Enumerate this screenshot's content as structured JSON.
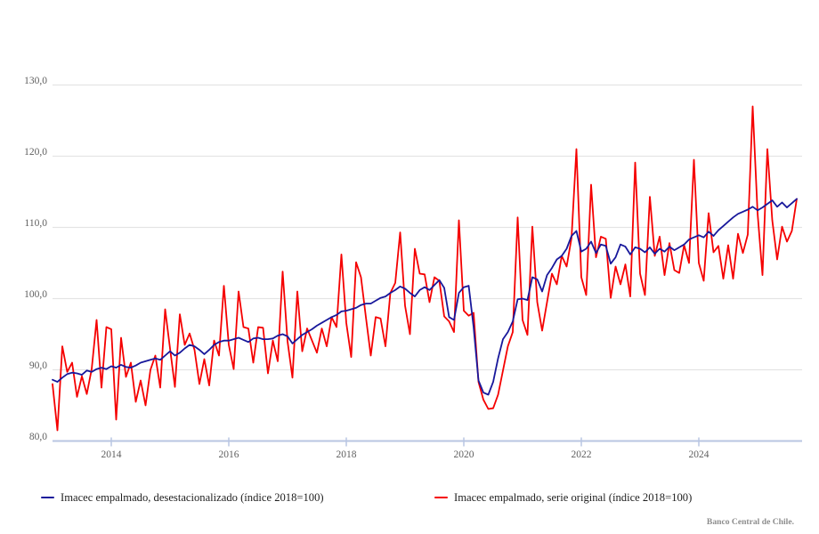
{
  "chart_data": {
    "type": "line",
    "title": "",
    "x_start": {
      "year": 2013,
      "month": 1
    },
    "x_end": {
      "year": 2025,
      "month": 9
    },
    "x_tick_years": [
      "2014",
      "2016",
      "2018",
      "2020",
      "2022",
      "2024"
    ],
    "y_ticks": [
      {
        "label": "130,0",
        "value": 130
      },
      {
        "label": "120,0",
        "value": 120
      },
      {
        "label": "110,0",
        "value": 110
      },
      {
        "label": "100,0",
        "value": 100
      },
      {
        "label": "90,0",
        "value": 90
      },
      {
        "label": "80,0",
        "value": 80
      }
    ],
    "ylim": [
      80,
      130
    ],
    "grid": "horizontal",
    "legend_position": "bottom",
    "colors": {
      "gridline": "#e4e4e4",
      "axis": "#b8c6e2",
      "tick_label": "#5f5f5f",
      "series_sa": "#18189b",
      "series_original": "#f50000"
    },
    "series": [
      {
        "name": "Imacec empalmado, desestacionalizado (índice 2018=100)",
        "color": "#18189b",
        "values": [
          88.6,
          88.3,
          88.9,
          89.4,
          89.6,
          89.5,
          89.3,
          89.9,
          89.7,
          90.1,
          90.3,
          90.1,
          90.5,
          90.3,
          90.7,
          90.4,
          90.3,
          90.6,
          91.0,
          91.2,
          91.4,
          91.6,
          91.4,
          92.0,
          92.6,
          92.0,
          92.4,
          93.0,
          93.5,
          93.3,
          92.8,
          92.2,
          92.8,
          93.5,
          93.9,
          94.1,
          94.1,
          94.3,
          94.5,
          94.2,
          93.9,
          94.4,
          94.5,
          94.3,
          94.3,
          94.4,
          94.8,
          95.0,
          94.7,
          93.7,
          94.3,
          94.9,
          95.3,
          95.7,
          96.2,
          96.6,
          97.0,
          97.4,
          97.7,
          98.2,
          98.3,
          98.5,
          98.7,
          99.1,
          99.3,
          99.3,
          99.7,
          100.1,
          100.3,
          100.8,
          101.2,
          101.7,
          101.4,
          100.8,
          100.3,
          101.2,
          101.6,
          101.2,
          101.9,
          102.6,
          101.5,
          97.4,
          97.0,
          100.8,
          101.6,
          101.8,
          96.0,
          88.5,
          86.8,
          86.5,
          88.3,
          91.6,
          94.3,
          95.3,
          96.8,
          99.9,
          100.0,
          99.8,
          103.0,
          102.7,
          101.0,
          103.3,
          104.3,
          105.5,
          106.0,
          107.0,
          108.8,
          109.5,
          106.6,
          107.0,
          108.0,
          106.4,
          107.6,
          107.4,
          104.9,
          105.8,
          107.6,
          107.3,
          106.2,
          107.2,
          107.0,
          106.5,
          107.2,
          106.3,
          107.0,
          106.6,
          107.3,
          106.8,
          107.2,
          107.6,
          108.3,
          108.6,
          108.9,
          108.6,
          109.4,
          108.8,
          109.6,
          110.2,
          110.8,
          111.4,
          111.9,
          112.2,
          112.5,
          112.9,
          112.4,
          112.8,
          113.3,
          113.8,
          112.9,
          113.5,
          112.8,
          113.4,
          114.0
        ]
      },
      {
        "name": "Imacec empalmado, serie original (índice 2018=100)",
        "color": "#f50000",
        "values": [
          88.0,
          81.5,
          93.3,
          89.7,
          91.0,
          86.2,
          89.1,
          86.6,
          90.1,
          97.0,
          87.5,
          96.0,
          95.7,
          83.0,
          94.5,
          89.0,
          91.0,
          85.5,
          88.5,
          85.0,
          90.0,
          92.0,
          87.5,
          98.5,
          93.0,
          87.6,
          97.8,
          93.5,
          95.1,
          92.8,
          88.0,
          91.5,
          87.8,
          94.1,
          92.0,
          101.8,
          93.5,
          90.1,
          101.0,
          96.0,
          95.8,
          91.0,
          96.0,
          95.9,
          89.5,
          94.1,
          91.2,
          103.8,
          94.0,
          88.9,
          101.0,
          92.6,
          95.8,
          94.1,
          92.4,
          95.8,
          93.3,
          97.4,
          96.0,
          106.2,
          96.6,
          91.8,
          105.1,
          103.0,
          97.4,
          92.0,
          97.4,
          97.2,
          93.3,
          100.8,
          102.2,
          109.3,
          99.0,
          95.0,
          107.0,
          103.5,
          103.4,
          99.5,
          103.0,
          102.5,
          97.5,
          96.8,
          95.3,
          111.0,
          98.3,
          97.6,
          98.0,
          88.3,
          85.8,
          84.5,
          84.6,
          86.5,
          89.9,
          93.3,
          95.3,
          111.4,
          97.0,
          94.9,
          110.1,
          99.5,
          95.5,
          99.5,
          103.5,
          102.0,
          106.0,
          104.5,
          108.5,
          121.0,
          103.0,
          100.5,
          116.0,
          105.8,
          108.7,
          108.4,
          100.1,
          104.5,
          102.0,
          104.8,
          100.3,
          119.1,
          103.5,
          100.5,
          114.3,
          106.0,
          108.7,
          103.3,
          107.8,
          104.0,
          103.6,
          107.5,
          105.0,
          119.5,
          105.0,
          102.5,
          112.0,
          106.5,
          107.4,
          102.8,
          107.5,
          102.8,
          109.1,
          106.4,
          109.0,
          127.0,
          112.0,
          103.3,
          121.0,
          111.0,
          105.5,
          110.1,
          108.0,
          109.5,
          114.0
        ]
      }
    ],
    "source": "Banco Central de Chile."
  }
}
